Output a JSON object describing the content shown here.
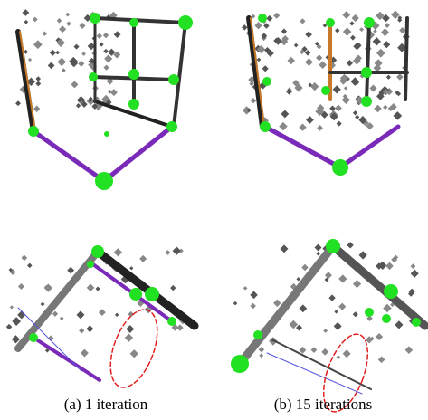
{
  "subfigures": [
    {
      "caption": "(a) 1 iteration"
    },
    {
      "caption": "(b) 15 iterations"
    }
  ]
}
